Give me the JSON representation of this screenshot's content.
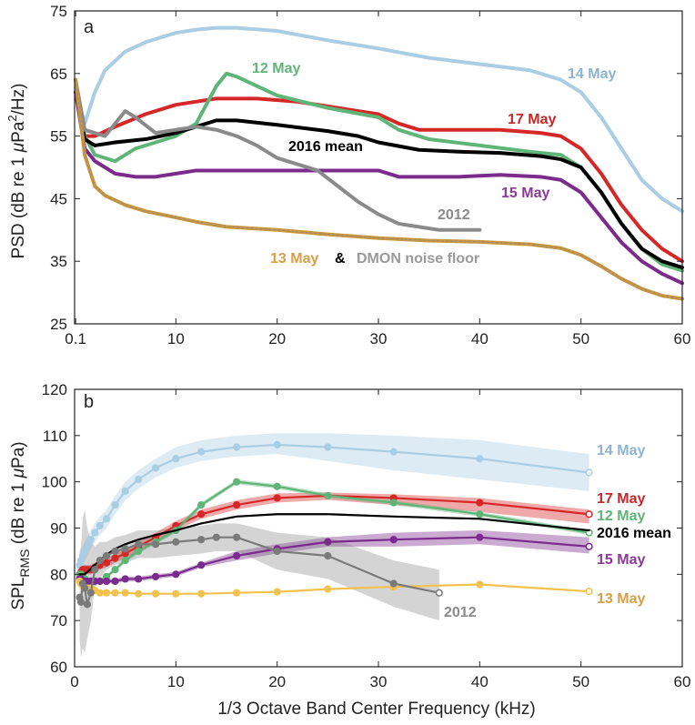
{
  "chart_data": [
    {
      "panel": "a",
      "type": "line",
      "ylabel": "PSD (dB re 1 μPa²/Hz)",
      "ylabel_parts": {
        "pre": "PSD (dB re 1 ",
        "mu": "μ",
        "unit": "Pa",
        "sup": "2",
        "post": "/Hz)"
      },
      "xlabel": "",
      "xlim": [
        0,
        60
      ],
      "ylim": [
        25,
        75
      ],
      "grid": false,
      "x_ticks": [
        0.1,
        10,
        20,
        30,
        40,
        50,
        60
      ],
      "x_tick_labels": [
        "0.1",
        "10",
        "20",
        "30",
        "40",
        "50",
        "60"
      ],
      "y_ticks": [
        25,
        35,
        45,
        55,
        65,
        75
      ],
      "y_tick_labels": [
        "25",
        "35",
        "45",
        "55",
        "65",
        "75"
      ],
      "series": [
        {
          "name": "14 May",
          "color": "#a9cde3",
          "x": [
            0.1,
            1,
            2,
            3,
            5,
            7,
            10,
            12,
            14,
            16,
            20,
            25,
            30,
            35,
            40,
            45,
            48,
            50,
            52,
            54,
            56,
            58,
            60
          ],
          "y": [
            62,
            57,
            62,
            65.5,
            68.5,
            70,
            71.5,
            72,
            72.3,
            72.3,
            71.8,
            70.3,
            69,
            67.5,
            66.5,
            65.5,
            64,
            62,
            58,
            53,
            48,
            45,
            43
          ]
        },
        {
          "name": "17 May",
          "color": "#d62728",
          "x": [
            0.1,
            1,
            2,
            4,
            7,
            10,
            14,
            18,
            22,
            26,
            30,
            32,
            34,
            38,
            42,
            46,
            48,
            50,
            52,
            54,
            56,
            58,
            60
          ],
          "y": [
            62,
            55,
            55,
            56.5,
            58.5,
            60,
            61,
            61,
            60.5,
            59.5,
            58.5,
            57,
            56,
            56,
            56,
            55.5,
            55,
            53,
            49,
            44,
            40,
            37,
            35
          ]
        },
        {
          "name": "12 May",
          "color": "#5fb577",
          "x": [
            0.1,
            1,
            2,
            4,
            6,
            8,
            10,
            12,
            14,
            15,
            16,
            20,
            25,
            30,
            32,
            35,
            40,
            45,
            48,
            50,
            52,
            54,
            56,
            58,
            60
          ],
          "y": [
            62,
            55,
            52,
            51,
            53,
            54,
            55,
            57,
            63,
            65,
            64.5,
            61.5,
            59.5,
            58,
            56,
            54.5,
            53.5,
            52.5,
            52,
            50,
            46,
            41,
            37,
            34.5,
            33.5
          ]
        },
        {
          "name": "2016 mean",
          "color": "#000000",
          "x": [
            0.1,
            1,
            2,
            4,
            7,
            10,
            14,
            16,
            20,
            25,
            28,
            30,
            34,
            38,
            42,
            46,
            48,
            50,
            52,
            54,
            56,
            58,
            60
          ],
          "y": [
            62,
            54.5,
            53.5,
            54,
            54.5,
            55.5,
            57.5,
            57.5,
            56.8,
            55.8,
            55,
            54,
            52.8,
            52.5,
            52.3,
            51.8,
            51.3,
            50,
            46,
            41,
            37,
            35,
            34
          ]
        },
        {
          "name": "15 May",
          "color": "#7b2b8c",
          "x": [
            0.1,
            1,
            2,
            4,
            6,
            8,
            10,
            12,
            15,
            20,
            25,
            30,
            32,
            34,
            38,
            42,
            46,
            48,
            50,
            52,
            54,
            56,
            58,
            60
          ],
          "y": [
            62,
            53,
            51,
            49,
            48.5,
            48.5,
            49,
            49.5,
            49.5,
            49.5,
            49.5,
            49.5,
            48.5,
            48.5,
            48.5,
            48.8,
            48.5,
            48,
            46,
            42,
            38,
            35,
            33,
            31.5
          ]
        },
        {
          "name": "2012",
          "color": "#8a8a8a",
          "x": [
            0.1,
            1,
            2,
            3,
            4,
            5,
            6,
            8,
            10,
            12,
            14,
            16,
            18,
            20,
            22,
            24,
            26,
            28,
            30,
            32,
            34,
            36,
            38,
            40
          ],
          "y": [
            64,
            56,
            55.5,
            55,
            57,
            59,
            58,
            55.5,
            56,
            56.5,
            56,
            55,
            53.5,
            51.5,
            50.5,
            49.5,
            47,
            44.5,
            42.5,
            41,
            40.5,
            40,
            40,
            40
          ]
        },
        {
          "name": "13 May & DMON noise floor",
          "color": "#c9953c",
          "overlay_color": "#8d8d8d",
          "x": [
            0.1,
            1,
            2,
            3,
            5,
            7,
            10,
            12,
            15,
            20,
            25,
            30,
            35,
            40,
            45,
            48,
            50,
            52,
            54,
            56,
            58,
            60
          ],
          "y": [
            64,
            52,
            47,
            45.5,
            44,
            43,
            42,
            41.3,
            40.5,
            40,
            39.3,
            38.7,
            38.3,
            38.1,
            37.7,
            37.1,
            36,
            34.2,
            32.2,
            30.6,
            29.5,
            29
          ]
        }
      ],
      "annotations": [
        {
          "text": "a",
          "kind": "panel-letter"
        },
        {
          "text": "12 May",
          "color": "#5fb577"
        },
        {
          "text": "14 May",
          "color": "#8cb4d2"
        },
        {
          "text": "17 May",
          "color": "#c62828"
        },
        {
          "text": "2016 mean",
          "color": "#000000"
        },
        {
          "text": "15 May",
          "color": "#8a3b94"
        },
        {
          "text": "2012",
          "color": "#8a8a8a"
        },
        {
          "text": "13 May",
          "color": "#d8a046"
        },
        {
          "text": "&",
          "color": "#000000"
        },
        {
          "text": "DMON noise floor",
          "color": "#9a9a9a"
        }
      ]
    },
    {
      "panel": "b",
      "type": "line",
      "ylabel": "SPL_RMS (dB re 1 μPa)",
      "ylabel_parts": {
        "main": "SPL",
        "sub": "RMS",
        "pre": " (dB re 1 ",
        "mu": "μ",
        "unit": "Pa)"
      },
      "xlabel": "1/3 Octave Band Center Frequency (kHz)",
      "xlim": [
        0,
        60
      ],
      "ylim": [
        60,
        120
      ],
      "grid": false,
      "x_ticks": [
        0,
        10,
        20,
        30,
        40,
        50,
        60
      ],
      "x_tick_labels": [
        "0",
        "10",
        "20",
        "30",
        "40",
        "50",
        "60"
      ],
      "y_ticks": [
        60,
        70,
        80,
        90,
        100,
        110,
        120
      ],
      "y_tick_labels": [
        "60",
        "70",
        "80",
        "90",
        "100",
        "110",
        "120"
      ],
      "series": [
        {
          "name": "14 May",
          "color": "#a9cde3",
          "x": [
            0.5,
            0.63,
            0.8,
            1,
            1.25,
            1.6,
            2,
            2.5,
            3.15,
            4,
            5,
            6.3,
            8,
            10,
            12.5,
            16,
            20,
            25,
            31.5,
            40,
            50.8
          ],
          "y": [
            82,
            83,
            84,
            85,
            86,
            87.5,
            89,
            90.5,
            92,
            95,
            98,
            100.5,
            103,
            105,
            106.5,
            107.5,
            108,
            107.5,
            106.5,
            105,
            102
          ],
          "band_upper": [
            84,
            85,
            86,
            87,
            88,
            89.5,
            91,
            92.5,
            94,
            97,
            100,
            102.5,
            105,
            107.5,
            109,
            110,
            110.5,
            110.5,
            110,
            109,
            106
          ],
          "band_lower": [
            80,
            81,
            82,
            83,
            84,
            85.5,
            87,
            88.5,
            90,
            93,
            96,
            98.5,
            101,
            103,
            104.5,
            105.5,
            106,
            104.5,
            102.5,
            100.5,
            98
          ]
        },
        {
          "name": "17 May",
          "color": "#d62728",
          "x": [
            0.5,
            0.63,
            0.8,
            1,
            1.25,
            1.6,
            2,
            2.5,
            3.15,
            4,
            5,
            6.3,
            8,
            10,
            12.5,
            16,
            20,
            25,
            31.5,
            40,
            50.8
          ],
          "y": [
            80,
            80.5,
            81,
            81,
            81,
            81,
            81.5,
            82,
            82.5,
            83.5,
            84.5,
            86,
            88,
            90.5,
            93,
            95,
            96.5,
            97,
            96.5,
            95.5,
            93
          ],
          "band_upper": [
            81,
            81.5,
            82,
            82,
            82,
            82,
            82.5,
            83,
            83.5,
            84.5,
            85.5,
            87,
            89,
            91.5,
            94,
            96,
            97.5,
            97.7,
            97.3,
            96.5,
            94
          ],
          "band_lower": [
            79,
            79.5,
            80,
            80,
            80,
            80,
            80.5,
            81,
            81.5,
            82.5,
            83.5,
            85,
            87,
            89.5,
            92,
            94,
            95.5,
            96.1,
            95,
            93.5,
            91
          ]
        },
        {
          "name": "12 May",
          "color": "#5fb577",
          "x": [
            0.5,
            0.63,
            0.8,
            1,
            1.25,
            1.6,
            2,
            2.5,
            3.15,
            4,
            5,
            6.3,
            8,
            10,
            12.5,
            16,
            20,
            25,
            31.5,
            40,
            50.8
          ],
          "y": [
            80,
            80,
            79.5,
            79,
            78.5,
            78.5,
            78.5,
            78.5,
            79.5,
            81,
            83,
            85,
            87,
            89.5,
            95,
            100,
            99,
            97,
            95.5,
            93,
            89
          ],
          "band_upper": [
            80.5,
            80.5,
            80,
            79.5,
            79,
            79,
            79,
            79,
            80,
            81.5,
            83.5,
            85.5,
            87.5,
            90,
            95.5,
            100.5,
            99.5,
            97.5,
            96,
            93.5,
            89.5
          ],
          "band_lower": [
            79.5,
            79.5,
            79,
            78.5,
            78,
            78,
            78,
            78,
            79,
            80.5,
            82.5,
            84.5,
            86.5,
            89,
            94.5,
            99.5,
            98.5,
            96.5,
            95,
            92.5,
            88.5
          ]
        },
        {
          "name": "2016 mean",
          "color": "#000000",
          "x": [
            0.5,
            1,
            2,
            3,
            4,
            5,
            6.3,
            8,
            10,
            12.5,
            16,
            20,
            25,
            31.5,
            40,
            50.8
          ],
          "y": [
            80,
            80,
            82,
            84,
            85.5,
            86.5,
            87.5,
            88.5,
            89.5,
            91,
            92.5,
            93,
            93,
            92.5,
            92,
            89.5
          ]
        },
        {
          "name": "15 May",
          "color": "#7b2b8c",
          "x": [
            0.5,
            0.63,
            0.8,
            1,
            1.25,
            1.6,
            2,
            2.5,
            3.15,
            4,
            5,
            6.3,
            8,
            10,
            12.5,
            16,
            20,
            25,
            31.5,
            40,
            50.8
          ],
          "y": [
            79,
            79,
            78.5,
            78.5,
            78.5,
            78.5,
            78.5,
            78.5,
            78.5,
            78.5,
            79,
            79,
            79.5,
            80,
            82,
            84,
            85.5,
            87,
            87.5,
            88,
            86
          ],
          "band_upper": [
            79.5,
            79.5,
            79,
            79,
            79,
            79,
            79,
            79,
            79,
            79,
            79.5,
            79.5,
            80,
            80.5,
            82.5,
            85,
            86.5,
            88,
            89,
            89.5,
            88
          ],
          "band_lower": [
            78.5,
            78.5,
            78,
            78,
            78,
            78,
            78,
            78,
            78,
            78,
            78.5,
            78.5,
            79,
            79.5,
            81.5,
            83,
            84.5,
            86,
            86,
            86.5,
            84.5
          ]
        },
        {
          "name": "13 May",
          "color": "#f2c14e",
          "x": [
            0.5,
            0.63,
            0.8,
            1,
            1.25,
            1.6,
            2,
            2.5,
            3.15,
            4,
            5,
            6.3,
            8,
            10,
            12.5,
            16,
            20,
            25,
            31.5,
            40,
            50.8
          ],
          "y": [
            78.5,
            78,
            77.5,
            77,
            77,
            77,
            76.5,
            76,
            76,
            76,
            76,
            75.8,
            75.8,
            75.8,
            75.8,
            76,
            76.2,
            76.8,
            77.3,
            77.8,
            76.3
          ]
        },
        {
          "name": "2012",
          "color": "#7a7a7a",
          "x": [
            0.5,
            0.63,
            0.8,
            1,
            1.25,
            1.6,
            2,
            2.5,
            3.15,
            4,
            5,
            6.3,
            8,
            10,
            12.5,
            14,
            16,
            20,
            25,
            31.5,
            36
          ],
          "y": [
            75,
            74,
            78,
            77,
            73.5,
            76,
            81,
            83,
            84,
            85,
            85.5,
            86.5,
            86.5,
            87,
            87.5,
            88,
            88,
            85,
            84,
            78,
            76
          ],
          "band_upper": [
            85,
            86,
            92,
            94,
            90,
            87,
            86,
            87,
            87,
            88,
            88.5,
            89.5,
            89.5,
            90,
            90.5,
            91,
            91,
            89,
            88,
            83,
            81
          ],
          "band_lower": [
            66,
            62,
            64,
            63,
            66,
            70,
            77,
            79,
            81,
            82,
            82.5,
            83.5,
            83.5,
            84,
            84.5,
            85,
            85,
            81,
            79,
            73,
            70
          ]
        }
      ],
      "annotations": [
        {
          "text": "b",
          "kind": "panel-letter"
        },
        {
          "text": "14 May",
          "color": "#8cb4d2"
        },
        {
          "text": "17 May",
          "color": "#c62828"
        },
        {
          "text": "12 May",
          "color": "#5fb577"
        },
        {
          "text": "2016 mean",
          "color": "#000000"
        },
        {
          "text": "15 May",
          "color": "#8a3b94"
        },
        {
          "text": "13 May",
          "color": "#d8a046"
        },
        {
          "text": "2012",
          "color": "#8a8a8a"
        }
      ]
    }
  ]
}
